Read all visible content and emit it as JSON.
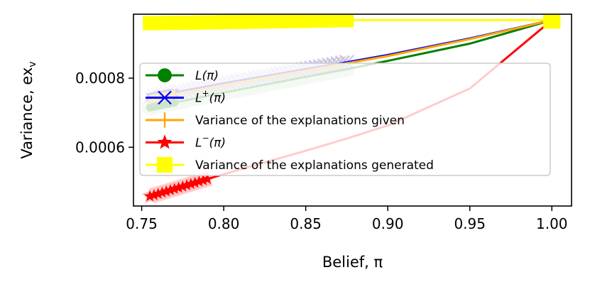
{
  "chart_data": {
    "type": "line",
    "xlabel": "Belief, π",
    "ylabel": "Variance, ex",
    "ylabel_sub": "v",
    "xlim": [
      0.745,
      1.012
    ],
    "ylim": [
      0.00043,
      0.000985
    ],
    "x_ticks": [
      0.75,
      0.8,
      0.85,
      0.9,
      0.95,
      1.0
    ],
    "x_tick_labels": [
      "0.75",
      "0.80",
      "0.85",
      "0.90",
      "0.95",
      "1.00"
    ],
    "y_ticks": [
      0.0006,
      0.0008
    ],
    "y_tick_labels": [
      "0.0006",
      "0.0008"
    ],
    "grid": false,
    "legend_position": "center-left",
    "series": [
      {
        "name_main": "L(π)",
        "name_sup": "",
        "name_tail": "",
        "color": "#008000",
        "marker": "circle",
        "x": [
          0.755,
          0.8,
          0.85,
          0.875,
          0.9,
          0.95,
          1.0
        ],
        "y": [
          0.000715,
          0.000758,
          0.000804,
          0.000826,
          0.00085,
          0.0009,
          0.000968
        ],
        "marker_x_range": [
          0.755,
          0.875
        ]
      },
      {
        "name_main": "L",
        "name_sup": "+",
        "name_tail": "(π)",
        "color": "#0000ff",
        "marker": "x",
        "x": [
          0.755,
          0.8,
          0.85,
          0.875,
          0.9,
          0.95,
          1.0
        ],
        "y": [
          0.000745,
          0.000785,
          0.000826,
          0.000846,
          0.000867,
          0.000915,
          0.000968
        ],
        "marker_x_range": [
          0.755,
          0.875
        ]
      },
      {
        "name_main": "Variance of the explanations given",
        "name_sup": "",
        "name_tail": "",
        "color": "#ffa500",
        "marker": "plus",
        "x": [
          0.755,
          0.8,
          0.85,
          0.875,
          0.9,
          0.95,
          1.0
        ],
        "y": [
          0.00074,
          0.00078,
          0.000822,
          0.000843,
          0.000864,
          0.000913,
          0.000968
        ],
        "marker_x_range": [
          0.755,
          0.875
        ]
      },
      {
        "name_main": "L",
        "name_sup": "−",
        "name_tail": "(π)",
        "color": "#ff0000",
        "marker": "star",
        "x": [
          0.755,
          0.8,
          0.85,
          0.875,
          0.9,
          0.95,
          1.0
        ],
        "y": [
          0.000458,
          0.000522,
          0.00059,
          0.000625,
          0.000663,
          0.00077,
          0.000968
        ],
        "marker_x_range": [
          0.755,
          0.79
        ]
      },
      {
        "name_main": "Variance of the explanations generated",
        "name_sup": "",
        "name_tail": "",
        "color": "#ffff00",
        "marker": "square",
        "x": [
          0.755,
          0.8,
          0.85,
          0.875,
          1.0
        ],
        "y": [
          0.000959,
          0.000962,
          0.000966,
          0.000968,
          0.000968
        ],
        "marker_x_range": [
          0.755,
          0.875
        ]
      }
    ]
  }
}
